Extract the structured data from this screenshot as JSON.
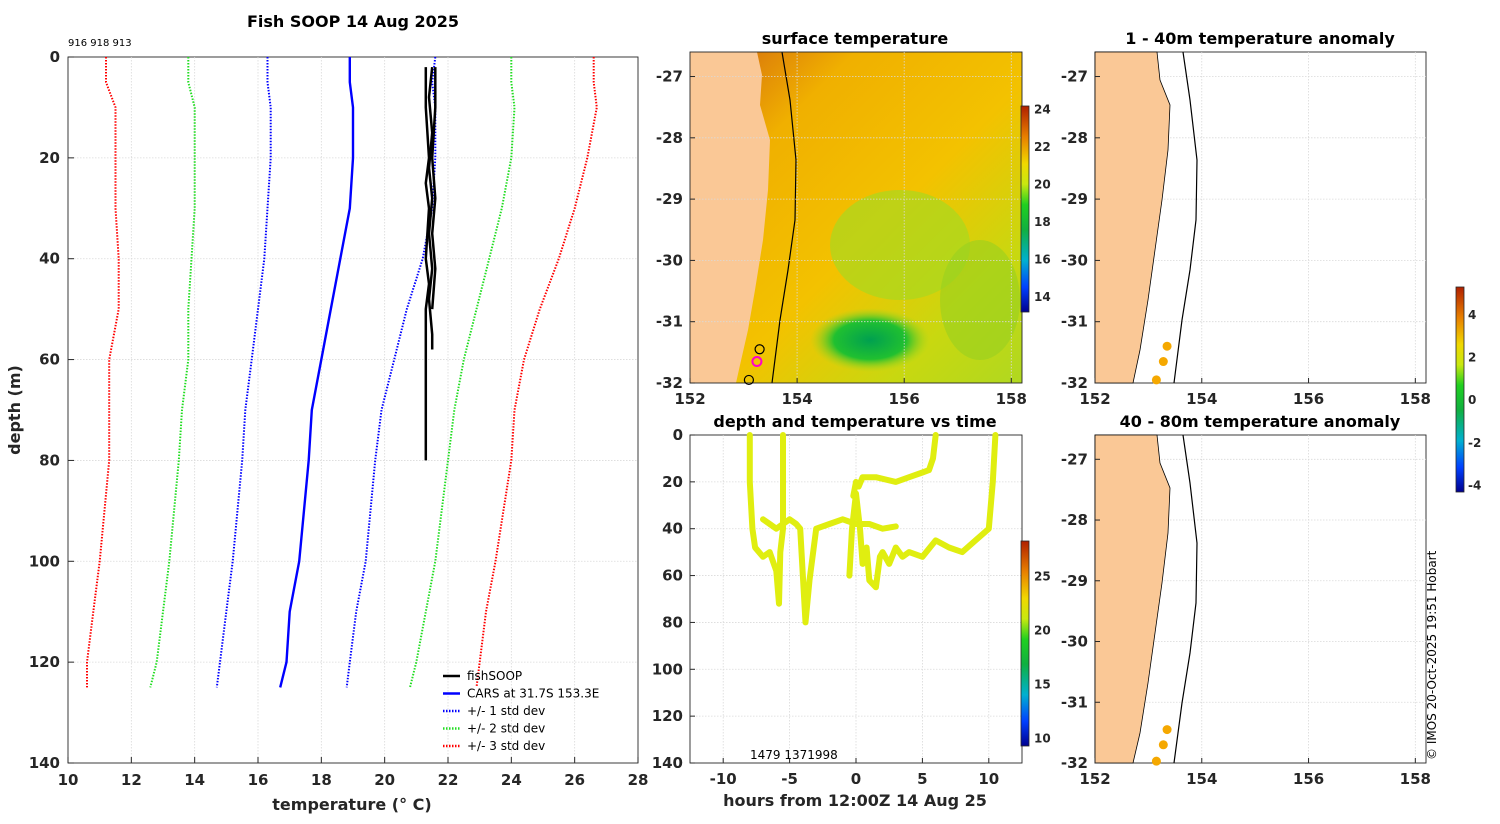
{
  "profile_panel": {
    "title": "Fish SOOP 14 Aug 2025",
    "ids_text": "916 918 913",
    "xlabel": "temperature (° C)",
    "ylabel": "depth (m)"
  },
  "sst_panel": {
    "title": "surface temperature"
  },
  "anom1_panel": {
    "title": "1 - 40m temperature anomaly"
  },
  "anom2_panel": {
    "title": "40 - 80m temperature anomaly"
  },
  "time_panel": {
    "title": "depth and temperature vs time",
    "xlabel": "hours from 12:00Z 14 Aug 25",
    "ids_text": "1479 1371998"
  },
  "credit": "© IMOS 20-Oct-2025 19:51 Hobart",
  "colors": {
    "fishsoop": "#000000",
    "cars": "#0000ff",
    "std1": "#0000ff",
    "std2": "#22dd22",
    "std3": "#ff0000",
    "land": "#fac896",
    "point": "#f5a800",
    "trace": "#e0ee10"
  },
  "chart_data": [
    {
      "id": "profile",
      "type": "line",
      "title": "Fish SOOP 14 Aug 2025",
      "xlabel": "temperature (o C)",
      "ylabel": "depth (m)",
      "xlim": [
        10,
        28
      ],
      "ylim": [
        0,
        140
      ],
      "y_reversed": true,
      "xticks": [
        10,
        12,
        14,
        16,
        18,
        20,
        22,
        24,
        26,
        28
      ],
      "yticks": [
        0,
        20,
        40,
        60,
        80,
        100,
        120,
        140
      ],
      "grid": true,
      "legend_position": "bottom-right",
      "legend": [
        "fishSOOP",
        "CARS at 31.7S 153.3E",
        "+/- 1 std dev",
        "+/- 2 std dev",
        "+/- 3 std dev"
      ],
      "series": [
        {
          "name": "CARS at 31.7S 153.3E",
          "style": "solid",
          "color": "#0000ff",
          "x": [
            18.9,
            18.9,
            19.0,
            19.0,
            18.9,
            18.6,
            18.3,
            18.0,
            17.7,
            17.6,
            17.3,
            17.0,
            16.9,
            16.7
          ],
          "y": [
            0,
            5,
            10,
            20,
            30,
            40,
            50,
            60,
            70,
            80,
            100,
            110,
            120,
            125
          ]
        },
        {
          "name": "+/- 1 std dev (low)",
          "style": "dotted",
          "color": "#0000ff",
          "x": [
            16.3,
            16.3,
            16.4,
            16.4,
            16.3,
            16.2,
            16.0,
            15.8,
            15.6,
            15.5,
            15.2,
            15.0,
            14.8,
            14.7
          ],
          "y": [
            0,
            5,
            10,
            20,
            30,
            40,
            50,
            60,
            70,
            80,
            100,
            110,
            120,
            125
          ]
        },
        {
          "name": "+/- 1 std dev (high)",
          "style": "dotted",
          "color": "#0000ff",
          "x": [
            21.6,
            21.5,
            21.6,
            21.6,
            21.5,
            21.2,
            20.7,
            20.3,
            19.9,
            19.7,
            19.4,
            19.1,
            18.9,
            18.8
          ],
          "y": [
            0,
            5,
            10,
            20,
            30,
            40,
            50,
            60,
            70,
            80,
            100,
            110,
            120,
            125
          ]
        },
        {
          "name": "+/- 2 std dev (low)",
          "style": "dotted",
          "color": "#22dd22",
          "x": [
            13.8,
            13.8,
            14.0,
            14.0,
            14.0,
            13.9,
            13.8,
            13.8,
            13.6,
            13.5,
            13.2,
            13.0,
            12.8,
            12.6
          ],
          "y": [
            0,
            5,
            10,
            20,
            30,
            40,
            50,
            60,
            70,
            80,
            100,
            110,
            120,
            125
          ]
        },
        {
          "name": "+/- 2 std dev (high)",
          "style": "dotted",
          "color": "#22dd22",
          "x": [
            24.0,
            24.0,
            24.1,
            24.0,
            23.7,
            23.3,
            22.9,
            22.5,
            22.2,
            22.0,
            21.6,
            21.3,
            21.0,
            20.8
          ],
          "y": [
            0,
            5,
            10,
            20,
            30,
            40,
            50,
            60,
            70,
            80,
            100,
            110,
            120,
            125
          ]
        },
        {
          "name": "+/- 3 std dev (low)",
          "style": "dotted",
          "color": "#ff0000",
          "x": [
            11.2,
            11.2,
            11.5,
            11.5,
            11.5,
            11.6,
            11.6,
            11.3,
            11.3,
            11.3,
            11.0,
            10.8,
            10.6,
            10.6
          ],
          "y": [
            0,
            5,
            10,
            20,
            30,
            40,
            50,
            60,
            70,
            80,
            100,
            110,
            120,
            125
          ]
        },
        {
          "name": "+/- 3 std dev (high)",
          "style": "dotted",
          "color": "#ff0000",
          "x": [
            26.6,
            26.6,
            26.7,
            26.4,
            26.0,
            25.5,
            24.9,
            24.4,
            24.1,
            24.0,
            23.5,
            23.2,
            23.0,
            22.9
          ],
          "y": [
            0,
            5,
            10,
            20,
            30,
            40,
            50,
            60,
            70,
            80,
            100,
            110,
            120,
            125
          ]
        },
        {
          "name": "fishSOOP 1",
          "style": "solid",
          "color": "#000000",
          "x": [
            21.3,
            21.3,
            21.4,
            21.3,
            21.4,
            21.3,
            21.4,
            21.3,
            21.3,
            21.3,
            21.3
          ],
          "y": [
            2,
            10,
            20,
            25,
            30,
            40,
            45,
            50,
            60,
            70,
            80
          ]
        },
        {
          "name": "fishSOOP 2",
          "style": "solid",
          "color": "#000000",
          "x": [
            21.5,
            21.4,
            21.5,
            21.4,
            21.5,
            21.4,
            21.5,
            21.4,
            21.5,
            21.5
          ],
          "y": [
            2,
            8,
            15,
            22,
            28,
            35,
            42,
            48,
            55,
            58
          ]
        },
        {
          "name": "fishSOOP 3",
          "style": "solid",
          "color": "#000000",
          "x": [
            21.6,
            21.6,
            21.5,
            21.6,
            21.5,
            21.6,
            21.5
          ],
          "y": [
            2,
            10,
            20,
            28,
            35,
            42,
            50
          ]
        }
      ]
    },
    {
      "id": "sst",
      "type": "heatmap",
      "title": "surface temperature",
      "xlim": [
        152,
        158.2
      ],
      "ylim": [
        -32,
        -26.6
      ],
      "xticks": [
        152,
        154,
        156,
        158
      ],
      "yticks": [
        -27,
        -28,
        -29,
        -30,
        -31,
        -32
      ],
      "colorbar": {
        "min": 13.2,
        "max": 24.2,
        "ticks": [
          14,
          16,
          18,
          20,
          22,
          24
        ]
      },
      "markers": [
        {
          "lon": 153.3,
          "lat": -31.45,
          "style": "black-circle"
        },
        {
          "lon": 153.25,
          "lat": -31.65,
          "style": "magenta-circle"
        },
        {
          "lon": 153.1,
          "lat": -31.95,
          "style": "black-circle"
        }
      ]
    },
    {
      "id": "anomaly_1_40",
      "type": "scatter",
      "title": "1 - 40m temperature anomaly",
      "xlim": [
        152,
        158.2
      ],
      "ylim": [
        -32,
        -26.6
      ],
      "xticks": [
        152,
        154,
        156,
        158
      ],
      "yticks": [
        -27,
        -28,
        -29,
        -30,
        -31,
        -32
      ],
      "points": [
        {
          "lon": 153.35,
          "lat": -31.4,
          "anomaly": 2.5
        },
        {
          "lon": 153.28,
          "lat": -31.65,
          "anomaly": 2.5
        },
        {
          "lon": 153.15,
          "lat": -31.95,
          "anomaly": 2.5
        }
      ]
    },
    {
      "id": "anomaly_40_80",
      "type": "scatter",
      "title": "40 - 80m temperature anomaly",
      "xlim": [
        152,
        158.2
      ],
      "ylim": [
        -32,
        -26.6
      ],
      "xticks": [
        152,
        154,
        156,
        158
      ],
      "yticks": [
        -27,
        -28,
        -29,
        -30,
        -31,
        -32
      ],
      "colorbar": {
        "min": -4.3,
        "max": 5.3,
        "ticks": [
          4,
          2,
          0,
          -2,
          -4
        ]
      },
      "points": [
        {
          "lon": 153.35,
          "lat": -31.45,
          "anomaly": 2.5
        },
        {
          "lon": 153.28,
          "lat": -31.7,
          "anomaly": 2.5
        },
        {
          "lon": 153.15,
          "lat": -31.97,
          "anomaly": 2.5
        }
      ]
    },
    {
      "id": "time_series",
      "type": "scatter",
      "title": "depth and temperature vs time",
      "xlabel": "hours from 12:00Z 14 Aug 25",
      "xlim": [
        -12.5,
        12.5
      ],
      "ylim": [
        0,
        140
      ],
      "y_reversed": true,
      "xticks": [
        -10,
        -5,
        0,
        5,
        10
      ],
      "yticks": [
        0,
        20,
        40,
        60,
        80,
        100,
        120,
        140
      ],
      "colorbar": {
        "min": 9.3,
        "max": 28.3,
        "ticks": [
          10,
          15,
          20,
          25
        ]
      },
      "series": [
        {
          "name": "trace 1",
          "temperature": 21.5,
          "x": [
            -8.0,
            -8.0,
            -7.8,
            -7.6,
            -7.0,
            -6.5,
            -6.0,
            -5.8,
            -5.7,
            -5.5,
            -5.5
          ],
          "y": [
            0,
            20,
            40,
            48,
            52,
            50,
            58,
            72,
            50,
            40,
            0
          ]
        },
        {
          "name": "trace 2",
          "temperature": 21.5,
          "x": [
            -7.0,
            -6.5,
            -6.0,
            -5.5,
            -5.0,
            -4.5,
            -4.2,
            -3.8,
            -3.5,
            -3.0,
            -2.0,
            -1.0,
            0.0,
            1.0,
            2.0,
            3.0
          ],
          "y": [
            36,
            38,
            40,
            38,
            36,
            38,
            40,
            80,
            62,
            40,
            38,
            36,
            38,
            38,
            40,
            39
          ]
        },
        {
          "name": "trace 3",
          "temperature": 21.5,
          "x": [
            -0.5,
            -0.3,
            0.0,
            0.3,
            0.5,
            0.8,
            1.0,
            1.5,
            1.8,
            2.0,
            2.5,
            3.0,
            3.5,
            4.0,
            5.0,
            6.0,
            7.0,
            8.0,
            9.0,
            10.0,
            10.3,
            10.5
          ],
          "y": [
            60,
            40,
            25,
            40,
            55,
            48,
            62,
            65,
            52,
            50,
            55,
            48,
            52,
            50,
            52,
            45,
            48,
            50,
            45,
            40,
            20,
            0
          ]
        },
        {
          "name": "trace 4",
          "temperature": 21.5,
          "x": [
            -0.2,
            0.0,
            0.2,
            0.5,
            1.5,
            3.0,
            4.0,
            5.0,
            5.5,
            5.8,
            6.0
          ],
          "y": [
            26,
            20,
            22,
            18,
            18,
            20,
            18,
            16,
            15,
            10,
            0
          ]
        }
      ]
    }
  ]
}
